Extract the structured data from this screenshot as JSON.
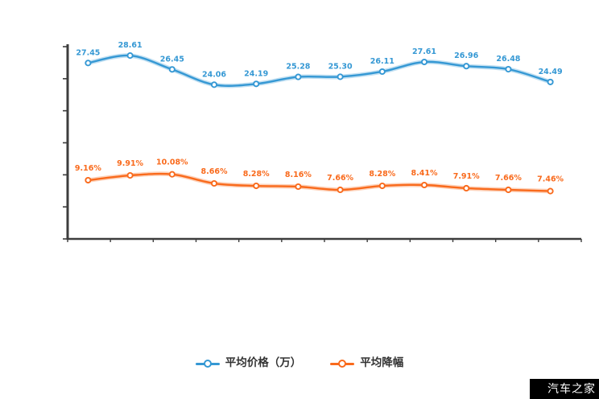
{
  "watermark": {
    "text": "汽车之家",
    "bg": "#000000",
    "fg": "#ffffff"
  },
  "colors": {
    "axis": "#3d3d3d",
    "series_price": "#3598d4",
    "series_discount": "#f96a1c",
    "legend_text": "#333333",
    "marker_fill": "#ffffff"
  },
  "chart_data": {
    "type": "line",
    "title": "",
    "xlabel": "",
    "ylabel": "",
    "x_axis": {
      "labels_visible": false,
      "points_count": 12
    },
    "y_axis": {
      "min": 0,
      "max": 30,
      "tick_count": 7,
      "labels_visible": false
    },
    "grid": false,
    "legend_position": "bottom-center",
    "series": [
      {
        "name": "平均价格（万）",
        "color": "#3598d4",
        "values": [
          27.45,
          28.61,
          26.45,
          24.06,
          24.19,
          25.28,
          25.3,
          26.11,
          27.61,
          26.96,
          26.48,
          24.49
        ],
        "labels": [
          "27.45",
          "28.61",
          "26.45",
          "24.06",
          "24.19",
          "25.28",
          "25.30",
          "26.11",
          "27.61",
          "26.96",
          "26.48",
          "24.49"
        ]
      },
      {
        "name": "平均降幅",
        "color": "#f96a1c",
        "values": [
          9.16,
          9.91,
          10.08,
          8.66,
          8.28,
          8.16,
          7.66,
          8.28,
          8.41,
          7.91,
          7.66,
          7.46
        ],
        "labels": [
          "9.16%",
          "9.91%",
          "10.08%",
          "8.66%",
          "8.28%",
          "8.16%",
          "7.66%",
          "8.28%",
          "8.41%",
          "7.91%",
          "7.66%",
          "7.46%"
        ]
      }
    ]
  }
}
